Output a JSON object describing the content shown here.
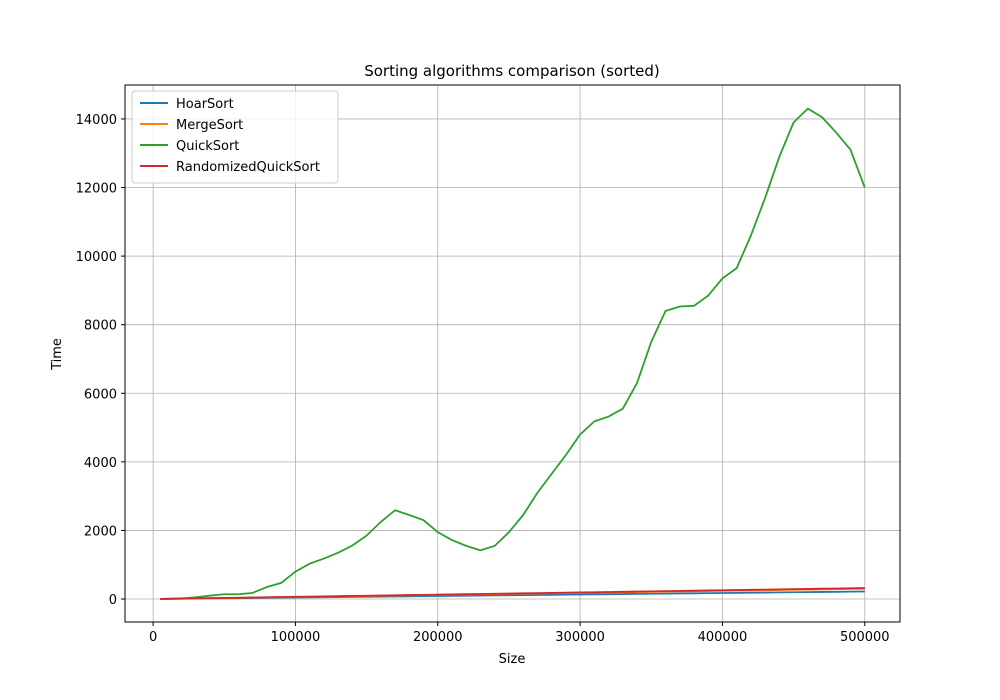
{
  "chart_data": {
    "type": "line",
    "title": "Sorting algorithms comparison (sorted)",
    "xlabel": "Size",
    "ylabel": "Time",
    "x": [
      5000,
      10000,
      20000,
      30000,
      40000,
      50000,
      60000,
      70000,
      80000,
      90000,
      100000,
      110000,
      120000,
      130000,
      140000,
      150000,
      160000,
      170000,
      180000,
      190000,
      200000,
      210000,
      220000,
      230000,
      240000,
      250000,
      260000,
      270000,
      280000,
      290000,
      300000,
      310000,
      320000,
      330000,
      340000,
      350000,
      360000,
      370000,
      380000,
      390000,
      400000,
      410000,
      420000,
      430000,
      440000,
      450000,
      460000,
      470000,
      480000,
      490000,
      500000
    ],
    "series": [
      {
        "name": "HoarSort",
        "color": "#1f77b4",
        "values": [
          2,
          4,
          9,
          13,
          18,
          22,
          26,
          31,
          35,
          40,
          44,
          48,
          53,
          57,
          62,
          66,
          70,
          75,
          79,
          84,
          88,
          92,
          97,
          101,
          106,
          110,
          114,
          119,
          123,
          128,
          132,
          136,
          141,
          145,
          150,
          154,
          158,
          163,
          167,
          172,
          176,
          180,
          185,
          189,
          194,
          198,
          202,
          207,
          211,
          216,
          220
        ]
      },
      {
        "name": "MergeSort",
        "color": "#ff7f0e",
        "values": [
          3,
          6,
          12,
          18,
          24,
          30,
          36,
          42,
          48,
          54,
          60,
          66,
          72,
          78,
          84,
          90,
          96,
          102,
          108,
          114,
          120,
          126,
          132,
          138,
          144,
          150,
          156,
          162,
          168,
          174,
          180,
          186,
          192,
          198,
          204,
          210,
          216,
          222,
          228,
          234,
          240,
          246,
          252,
          258,
          264,
          270,
          276,
          282,
          288,
          294,
          300
        ]
      },
      {
        "name": "QuickSort",
        "color": "#2ca02c",
        "values": [
          0,
          5,
          20,
          50,
          100,
          140,
          140,
          180,
          350,
          470,
          800,
          1030,
          1180,
          1350,
          1560,
          1850,
          2250,
          2590,
          2450,
          2300,
          1950,
          1720,
          1550,
          1420,
          1550,
          1950,
          2450,
          3100,
          3650,
          4200,
          4800,
          5180,
          5320,
          5550,
          6300,
          7500,
          8400,
          8530,
          8550,
          8850,
          9350,
          9650,
          10600,
          11700,
          12900,
          13900,
          14300,
          14050,
          13600,
          13100,
          12000
        ]
      },
      {
        "name": "RandomizedQuickSort",
        "color": "#d62728",
        "values": [
          3,
          6,
          13,
          19,
          26,
          32,
          38,
          45,
          51,
          58,
          64,
          70,
          77,
          83,
          90,
          96,
          102,
          109,
          115,
          122,
          128,
          134,
          141,
          147,
          154,
          160,
          166,
          173,
          179,
          186,
          192,
          198,
          205,
          211,
          218,
          224,
          230,
          237,
          243,
          250,
          256,
          262,
          269,
          275,
          282,
          288,
          294,
          301,
          307,
          314,
          320
        ]
      }
    ],
    "xlim": [
      -19750,
      524750
    ],
    "ylim": [
      -670,
      14990
    ],
    "xticks": [
      0,
      100000,
      200000,
      300000,
      400000,
      500000
    ],
    "yticks": [
      0,
      2000,
      4000,
      6000,
      8000,
      10000,
      12000,
      14000
    ],
    "grid": true,
    "legend": "upper-left"
  }
}
